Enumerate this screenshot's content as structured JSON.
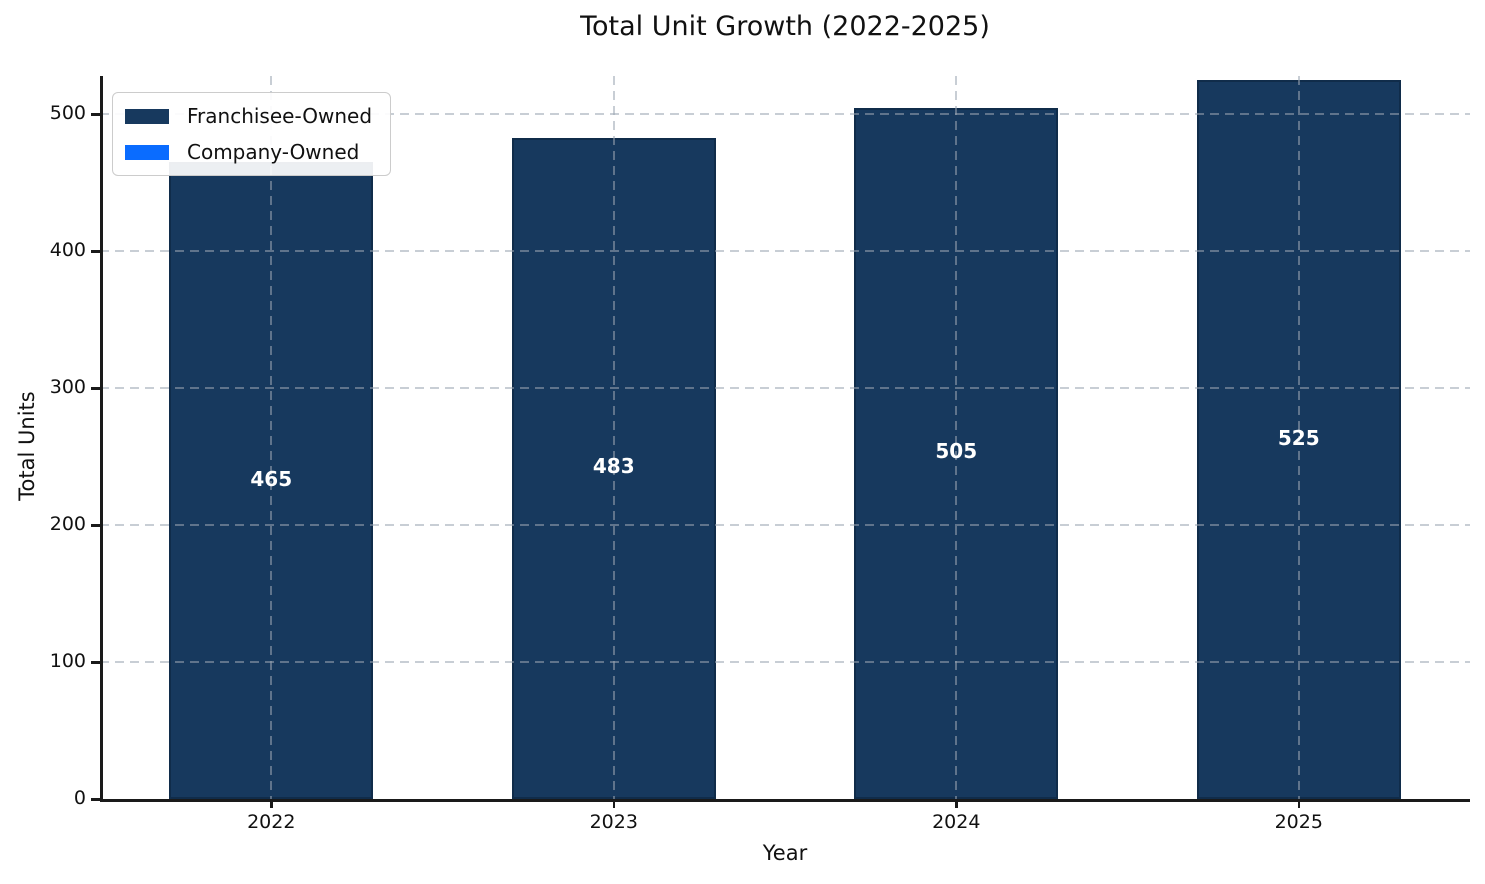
{
  "chart_data": {
    "type": "bar",
    "stacked": true,
    "title": "Total Unit Growth (2022-2025)",
    "xlabel": "Year",
    "ylabel": "Total Units",
    "categories": [
      "2022",
      "2023",
      "2024",
      "2025"
    ],
    "series": [
      {
        "name": "Franchisee-Owned",
        "color": "#17395E",
        "values": [
          465,
          483,
          505,
          525
        ]
      },
      {
        "name": "Company-Owned",
        "color": "#0A6CFF",
        "values": [
          0,
          0,
          0,
          0
        ]
      }
    ],
    "totals": [
      465,
      483,
      505,
      525
    ],
    "value_labels": [
      "465",
      "483",
      "505",
      "525"
    ],
    "ylim": [
      0,
      528
    ],
    "yticks": [
      0,
      100,
      200,
      300,
      400,
      500
    ],
    "grid": "dashed",
    "legend_position": "upper left",
    "axis_text_color": "#111111"
  }
}
